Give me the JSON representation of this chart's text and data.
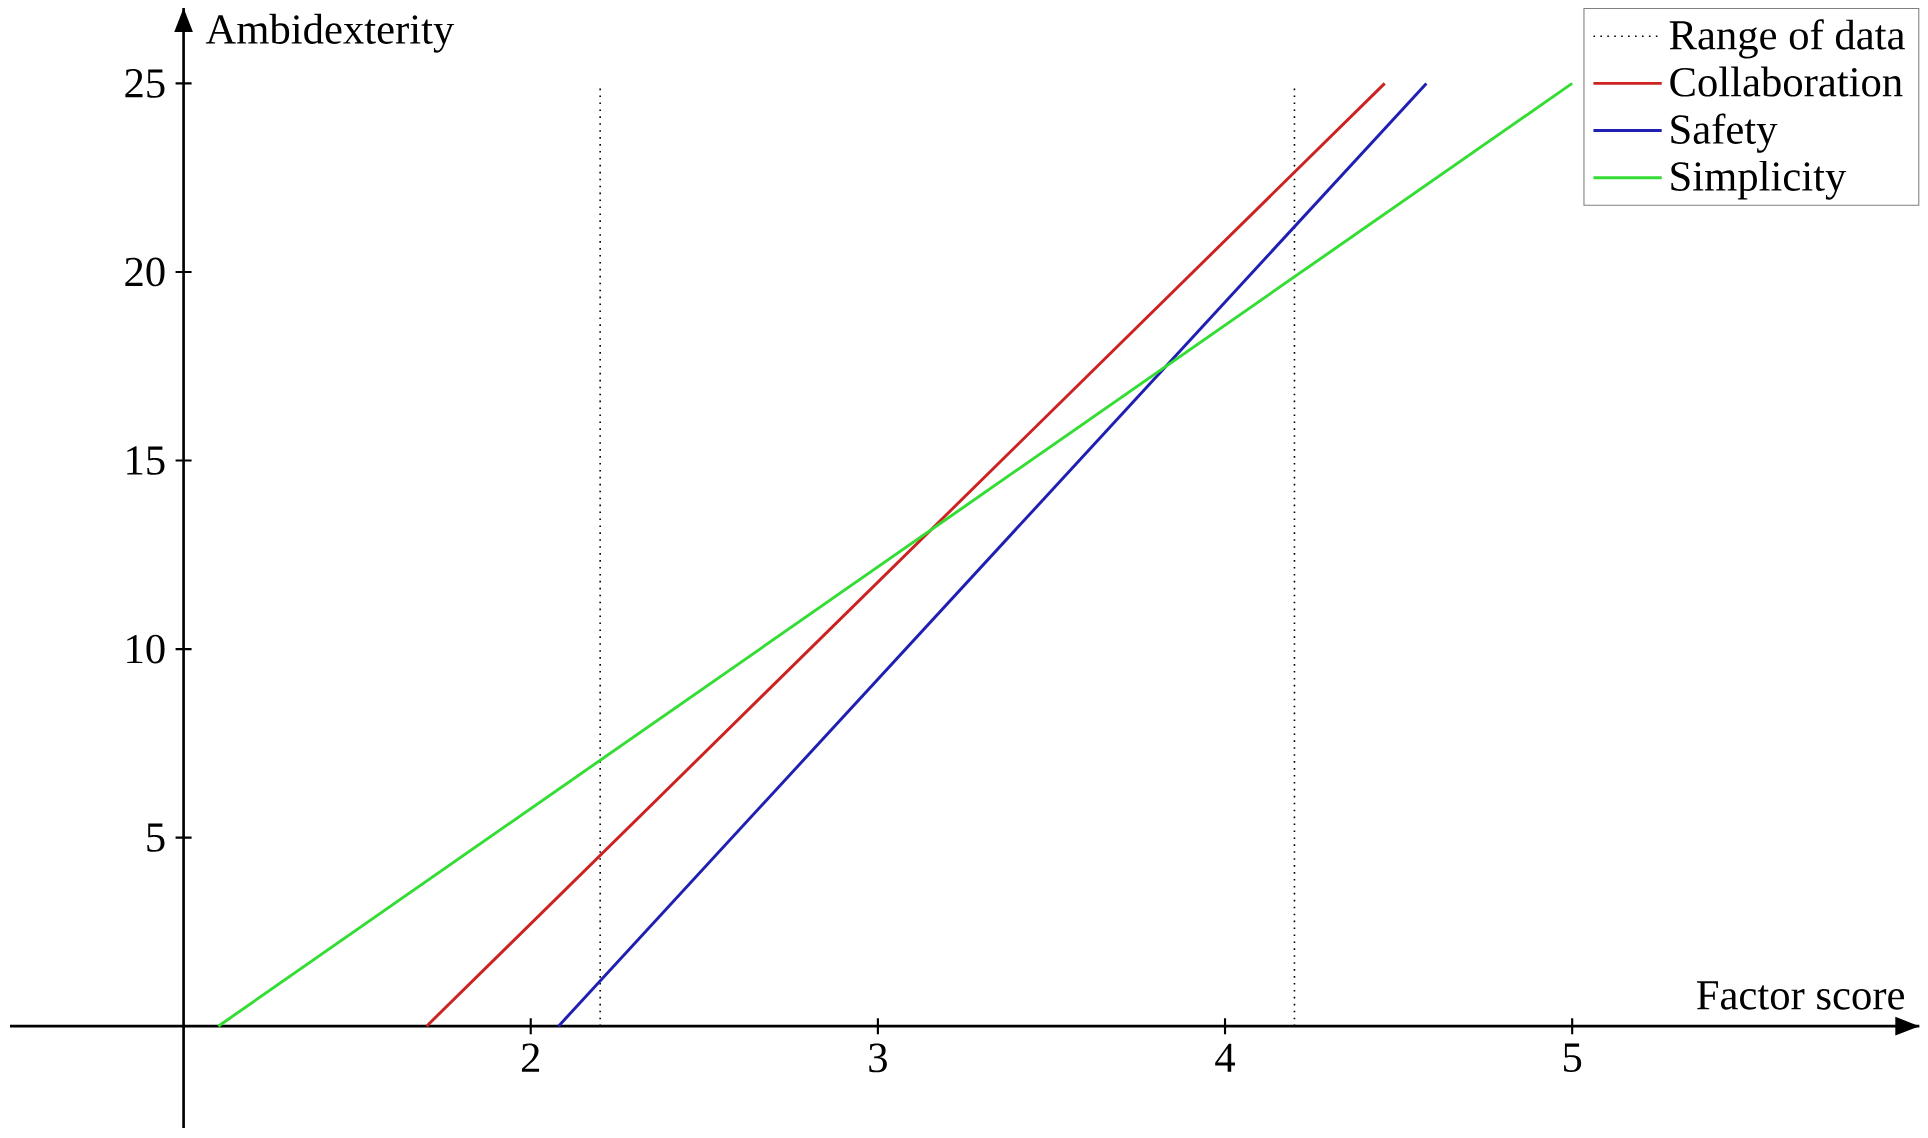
{
  "chart_data": {
    "type": "line",
    "xlabel": "Factor score",
    "ylabel": "Ambidexterity",
    "xlim": [
      0.5,
      6.0
    ],
    "ylim": [
      -2.7,
      27.0
    ],
    "xticks": [
      2,
      3,
      4,
      5
    ],
    "yticks": [
      5,
      10,
      15,
      20,
      25
    ],
    "series": [
      {
        "name": "Collaboration",
        "color": "#cc2222",
        "x": [
          1.7,
          4.46
        ],
        "values": [
          0,
          25
        ]
      },
      {
        "name": "Safety",
        "color": "#1f1fb4",
        "x": [
          2.08,
          4.58
        ],
        "values": [
          0,
          25
        ]
      },
      {
        "name": "Simplicity",
        "color": "#33dd33",
        "x": [
          1.1,
          5.0
        ],
        "values": [
          0,
          25
        ]
      }
    ],
    "ref_lines": [
      {
        "axis": "x",
        "value": 2.2,
        "label": "Range of data",
        "color": "#000000",
        "line_style": "dotted"
      },
      {
        "axis": "x",
        "value": 4.2,
        "color": "#000000",
        "line_style": "dotted"
      }
    ],
    "legend": "top right",
    "grid": false,
    "marker": "none",
    "line_style": "solid"
  }
}
